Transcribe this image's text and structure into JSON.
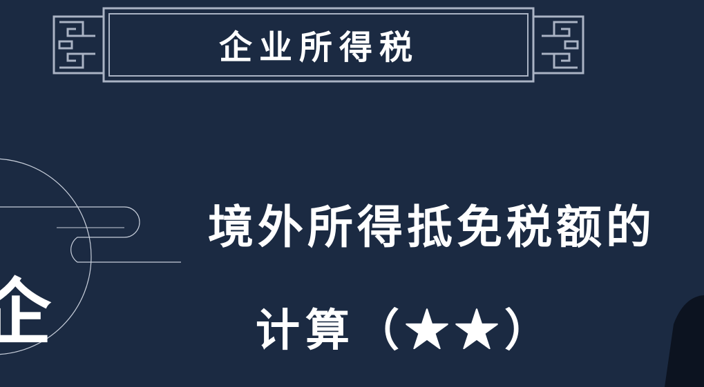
{
  "header": {
    "title": "企业所得税"
  },
  "headline": {
    "line1": "境外所得抵免税额的",
    "line2": "计算（★★）"
  },
  "decor": {
    "side_char": "企"
  },
  "colors": {
    "background": "#1b2a42",
    "frame": "#aab3c4",
    "text": "#ffffff"
  }
}
